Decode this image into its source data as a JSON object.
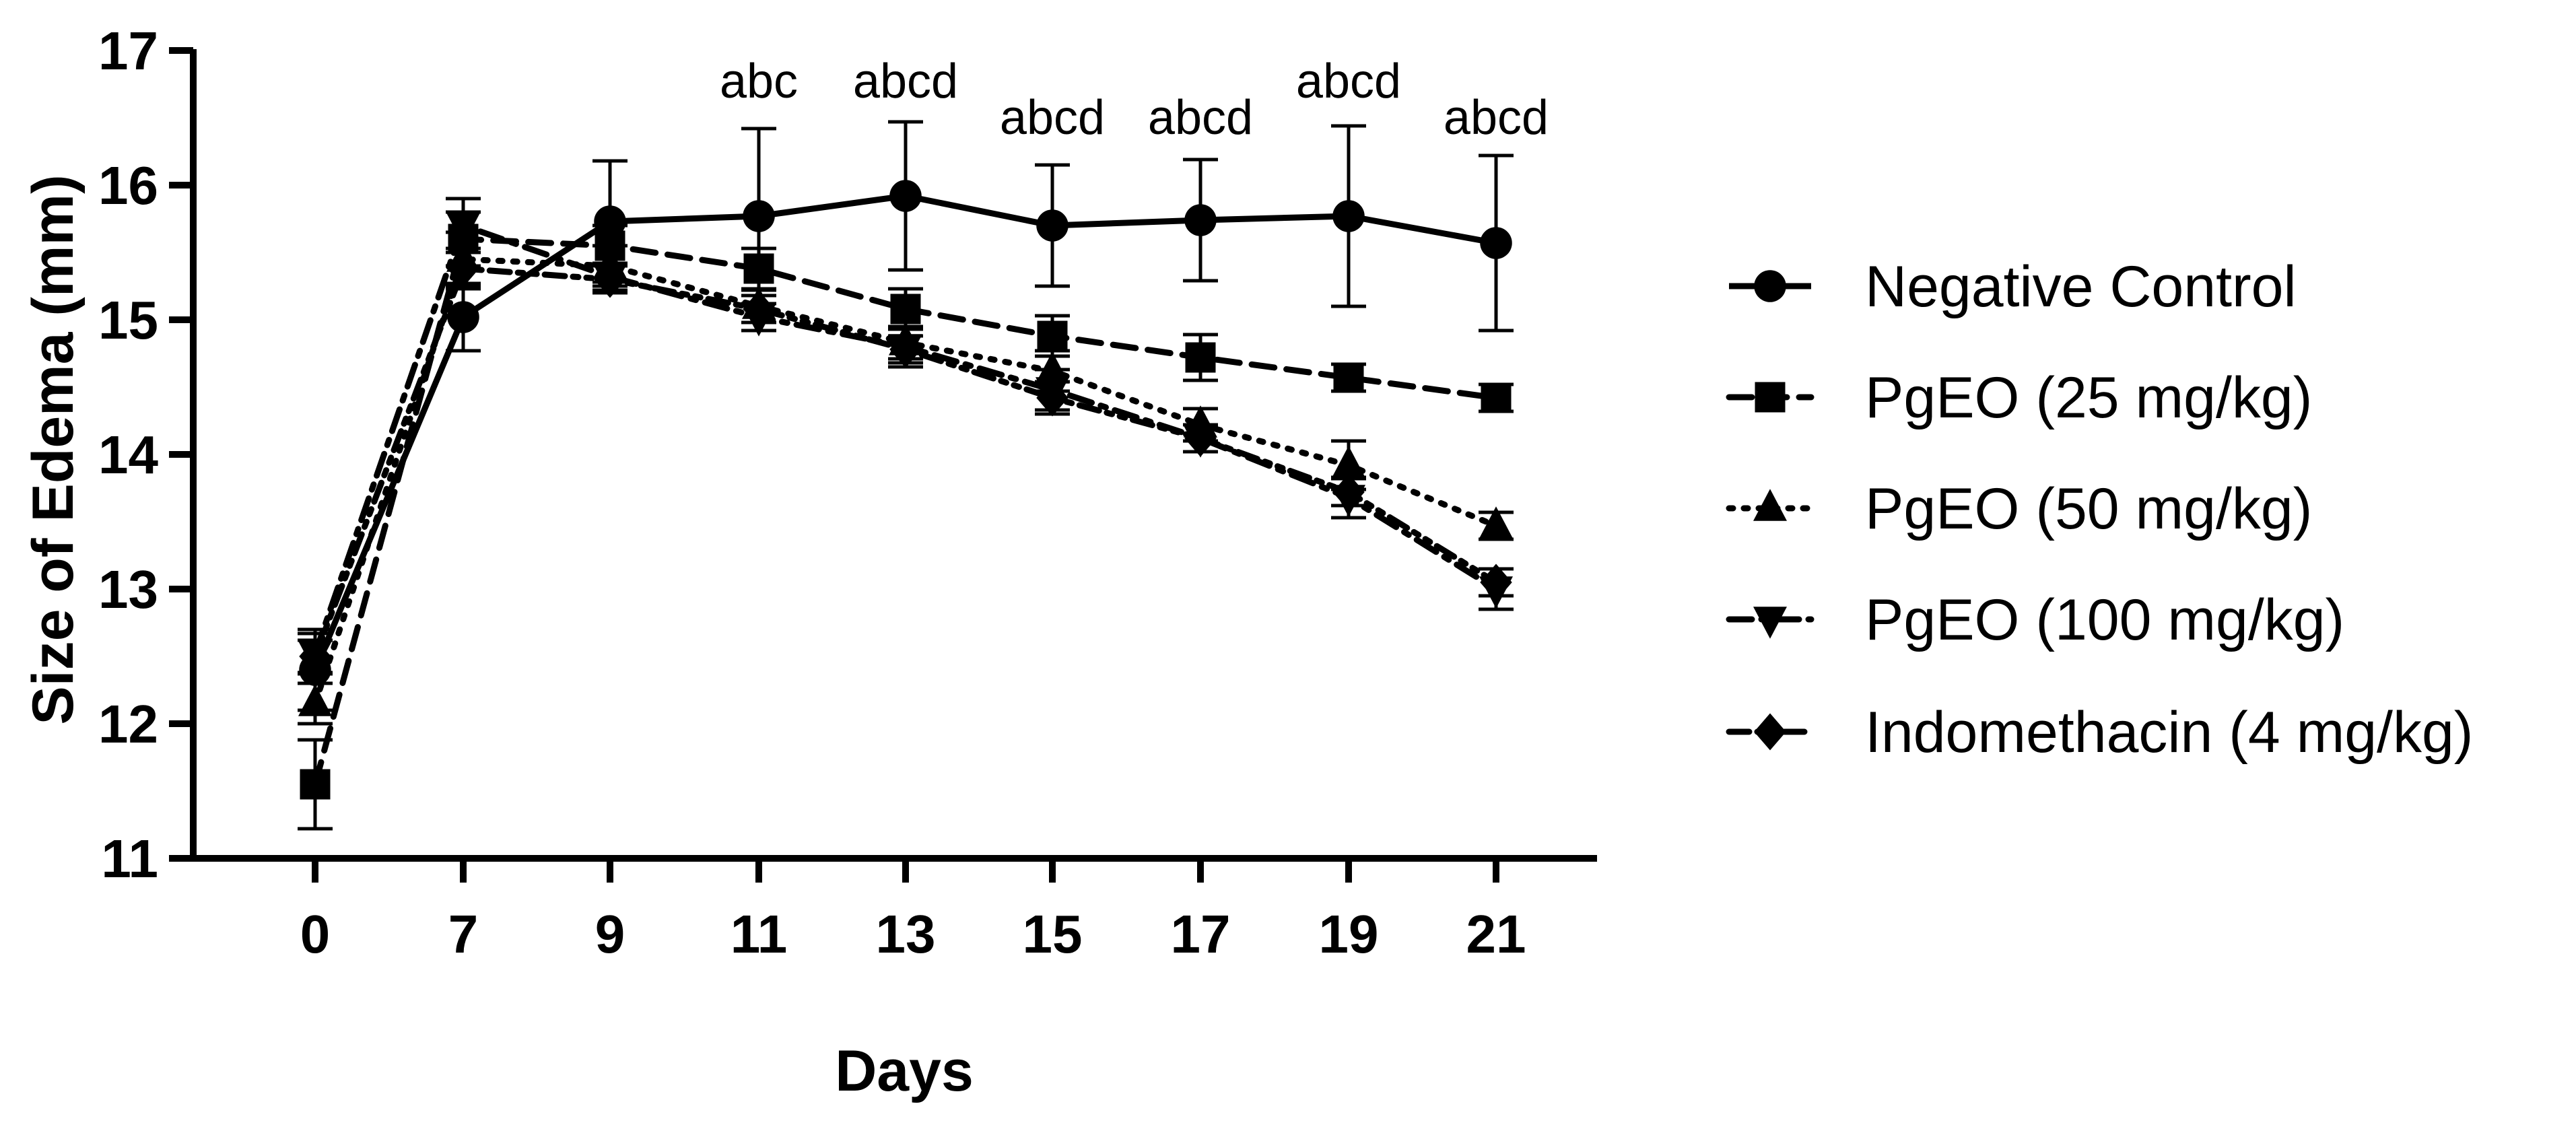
{
  "chart_data": {
    "type": "line",
    "title": "",
    "xlabel": "Days",
    "ylabel": "Size of Edema (mm)",
    "categories": [
      "0",
      "7",
      "9",
      "11",
      "13",
      "15",
      "17",
      "19",
      "21"
    ],
    "ylim": [
      11,
      17
    ],
    "yticks": [
      11,
      12,
      13,
      14,
      15,
      16,
      17
    ],
    "grid": false,
    "legend_position": "right",
    "series": [
      {
        "name": "Negative Control",
        "marker": "circle",
        "dash": "solid",
        "values": [
          12.4,
          15.02,
          15.73,
          15.77,
          15.92,
          15.7,
          15.74,
          15.77,
          15.57
        ],
        "errors": [
          0.3,
          0.25,
          0.45,
          0.65,
          0.55,
          0.45,
          0.45,
          0.67,
          0.65
        ]
      },
      {
        "name": "PgEO (25 mg/kg)",
        "marker": "square",
        "dash": "dashed",
        "values": [
          11.55,
          15.6,
          15.55,
          15.38,
          15.08,
          14.88,
          14.72,
          14.57,
          14.42
        ],
        "errors": [
          0.33,
          0.2,
          0.15,
          0.15,
          0.15,
          0.15,
          0.17,
          0.1,
          0.1
        ]
      },
      {
        "name": "PgEO (50 mg/kg)",
        "marker": "triangle-up",
        "dash": "dotted",
        "values": [
          12.15,
          15.45,
          15.4,
          15.1,
          14.83,
          14.62,
          14.22,
          13.92,
          13.47
        ],
        "errors": [
          0.15,
          0.2,
          0.15,
          0.12,
          0.12,
          0.15,
          0.12,
          0.18,
          0.1
        ]
      },
      {
        "name": "PgEO (100 mg/kg)",
        "marker": "triangle-down",
        "dash": "dash-dot",
        "values": [
          12.52,
          15.7,
          15.32,
          15.02,
          14.8,
          14.48,
          14.12,
          13.68,
          13.0
        ],
        "errors": [
          0.15,
          0.2,
          0.1,
          0.1,
          0.15,
          0.15,
          0.1,
          0.15,
          0.15
        ]
      },
      {
        "name": "Indomethacin (4 mg/kg)",
        "marker": "diamond",
        "dash": "dash-dot-dot",
        "values": [
          12.5,
          15.38,
          15.3,
          15.08,
          14.78,
          14.42,
          14.12,
          13.72,
          13.05
        ],
        "errors": [
          0.12,
          0.15,
          0.1,
          0.1,
          0.1,
          0.12,
          0.1,
          0.1,
          0.1
        ]
      }
    ],
    "annotations": [
      {
        "category": "11",
        "text": "abc",
        "y": 16.65
      },
      {
        "category": "13",
        "text": "abcd",
        "y": 16.65
      },
      {
        "category": "15",
        "text": "abcd",
        "y": 16.38
      },
      {
        "category": "17",
        "text": "abcd",
        "y": 16.38
      },
      {
        "category": "19",
        "text": "abcd",
        "y": 16.65
      },
      {
        "category": "21",
        "text": "abcd",
        "y": 16.38
      }
    ]
  }
}
